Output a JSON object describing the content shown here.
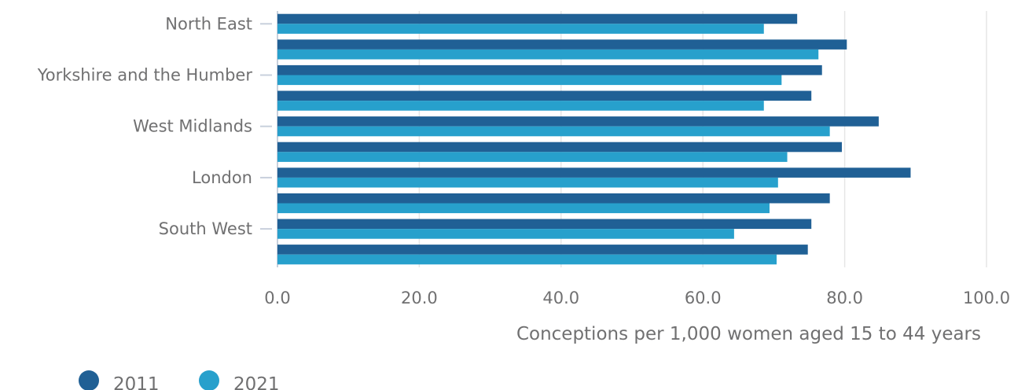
{
  "chart_data": {
    "type": "bar",
    "orientation": "horizontal",
    "categories": [
      "North East",
      "",
      "Yorkshire and the Humber",
      "",
      "West Midlands",
      "",
      "London",
      "",
      "South West",
      ""
    ],
    "series": [
      {
        "name": "2011",
        "color": "#206095",
        "values": [
          73.3,
          80.3,
          76.8,
          75.3,
          84.8,
          79.6,
          89.3,
          77.9,
          75.3,
          74.8
        ]
      },
      {
        "name": "2021",
        "color": "#27a0cc",
        "values": [
          68.6,
          76.3,
          71.1,
          68.6,
          77.9,
          71.9,
          70.6,
          69.4,
          64.4,
          70.4
        ]
      }
    ],
    "x_ticks": [
      "0.0",
      "20.0",
      "40.0",
      "60.0",
      "80.0",
      "100.0"
    ],
    "xlim": [
      0,
      100
    ],
    "xlabel": "Conceptions per 1,000 women aged 15 to 44 years",
    "grid": true,
    "legend_position": "bottom-left"
  }
}
